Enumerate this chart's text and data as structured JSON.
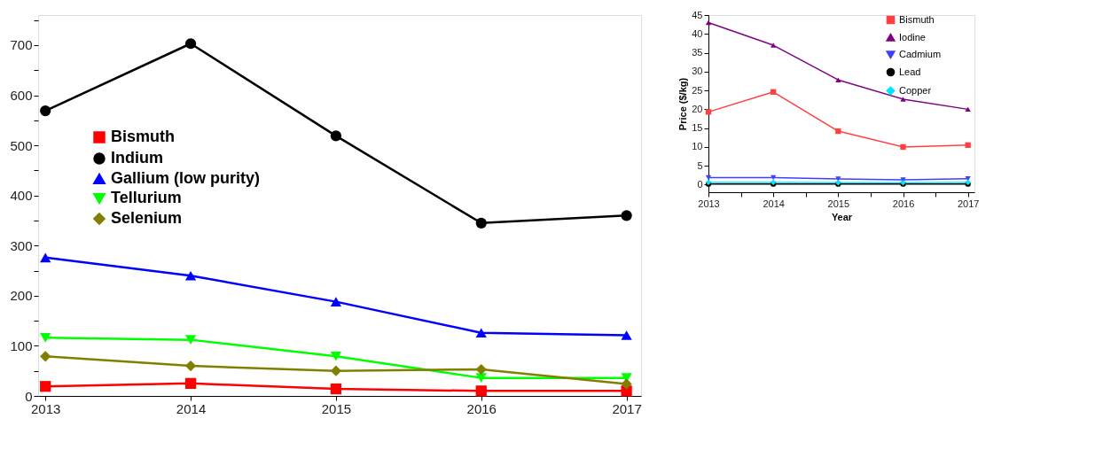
{
  "chart_data": [
    {
      "type": "line",
      "x": [
        2013,
        2014,
        2015,
        2016,
        2017
      ],
      "xlim": [
        2012.95,
        2017.1
      ],
      "xticks": [
        2013,
        2014,
        2015,
        2016,
        2017
      ],
      "ylim": [
        0,
        760
      ],
      "yticks": [
        0,
        {
          "value": 50,
          "label": null
        },
        100,
        {
          "value": 150,
          "label": null
        },
        200,
        {
          "value": 250,
          "label": null
        },
        300,
        {
          "value": 350,
          "label": null
        },
        400,
        {
          "value": 450,
          "label": null
        },
        500,
        {
          "value": 550,
          "label": null
        },
        600,
        {
          "value": 650,
          "label": null
        },
        700,
        {
          "value": 750,
          "label": null
        }
      ],
      "grid": false,
      "legend": "left",
      "line_style": "solid",
      "series": [
        {
          "name": "Bismuth",
          "color": "#ff0000",
          "marker": "square",
          "values": [
            19,
            25,
            14,
            10,
            10
          ]
        },
        {
          "name": "Indium",
          "color": "#000000",
          "marker": "circle",
          "values": [
            569,
            703,
            519,
            345,
            360
          ]
        },
        {
          "name": "Gallium (low purity)",
          "color": "#0000ff",
          "marker": "triangle",
          "values": [
            276,
            240,
            188,
            126,
            121
          ]
        },
        {
          "name": "Tellurium",
          "color": "#00ff00",
          "marker": "triangle-down",
          "values": [
            116,
            112,
            79,
            36,
            36
          ]
        },
        {
          "name": "Selenium",
          "color": "#808000",
          "marker": "diamond",
          "values": [
            79,
            60,
            50,
            53,
            24
          ]
        }
      ]
    },
    {
      "type": "line",
      "x": [
        2013,
        2014,
        2015,
        2016,
        2017
      ],
      "xlabel": "Year",
      "ylabel": "Price ($/kg)",
      "xlim": [
        2013,
        2017.1
      ],
      "xticks": [
        2013,
        {
          "value": 2013.5,
          "label": null
        },
        2014,
        {
          "value": 2014.5,
          "label": null
        },
        2015,
        {
          "value": 2015.5,
          "label": null
        },
        2016,
        {
          "value": 2016.5,
          "label": null
        },
        2017
      ],
      "ylim": [
        -2,
        45
      ],
      "yticks": [
        0,
        5,
        10,
        15,
        20,
        25,
        30,
        35,
        40,
        45
      ],
      "grid": false,
      "legend": "top right",
      "line_style": "solid",
      "series": [
        {
          "name": "Bismuth",
          "color": "#ff4040",
          "marker": "square",
          "values": [
            19.3,
            24.6,
            14.2,
            10,
            10.5
          ]
        },
        {
          "name": "Iodine",
          "color": "#800080",
          "marker": "triangle",
          "values": [
            43,
            37,
            27.8,
            22.7,
            20
          ]
        },
        {
          "name": "Cadmium",
          "color": "#4040ff",
          "marker": "triangle-down",
          "values": [
            1.9,
            1.9,
            1.5,
            1.3,
            1.6
          ]
        },
        {
          "name": "Lead",
          "color": "#000000",
          "marker": "circle",
          "values": [
            0.2,
            0.2,
            0.2,
            0.2,
            0.2
          ]
        },
        {
          "name": "Copper",
          "color": "#00e5ff",
          "marker": "diamond",
          "values": [
            0.6,
            0.6,
            0.5,
            0.5,
            0.6
          ]
        }
      ]
    }
  ]
}
